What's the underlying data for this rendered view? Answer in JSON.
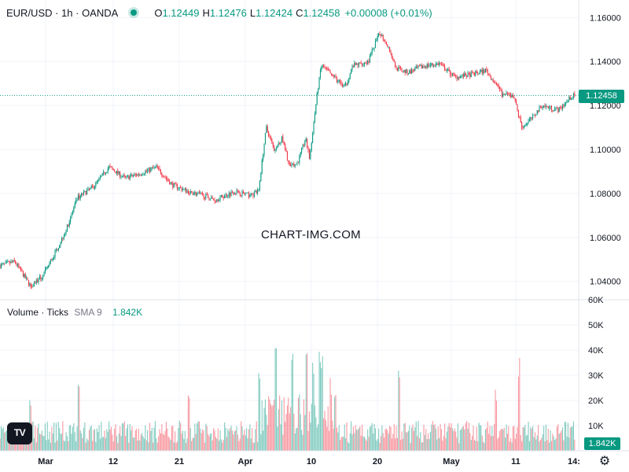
{
  "legend": {
    "symbol": "EUR/USD · 1h · OANDA",
    "open_label": "O",
    "open": "1.12449",
    "high_label": "H",
    "high": "1.12476",
    "low_label": "L",
    "low": "1.12424",
    "close_label": "C",
    "close": "1.12458",
    "change": "+0.00008 (+0.01%)"
  },
  "volume_legend": {
    "name": "Volume · Ticks",
    "sma": "SMA 9",
    "value": "1.842K"
  },
  "watermark": "CHART-IMG.COM",
  "last_price_label": "1.12458",
  "last_volume_label": "1.842K",
  "colors": {
    "up": "#089981",
    "down": "#f23645",
    "grid": "#f0f3fa",
    "text": "#131722"
  },
  "icons": {
    "logo": "tradingview-logo-icon",
    "settings": "gear-icon"
  },
  "chart_data": {
    "type": "candlestick",
    "price_axis": {
      "ticks": [
        "1.16000",
        "1.14000",
        "1.12000",
        "1.10000",
        "1.08000",
        "1.06000",
        "1.04000"
      ],
      "range": [
        1.032,
        1.168
      ]
    },
    "volume_axis": {
      "ticks": [
        "60K",
        "50K",
        "40K",
        "30K",
        "20K",
        "10K"
      ],
      "range": [
        0,
        60000
      ]
    },
    "x_ticks": [
      "Mar",
      "12",
      "21",
      "Apr",
      "10",
      "20",
      "May",
      "11",
      "14:"
    ],
    "last_price": 1.12458,
    "price_path": [
      [
        0,
        1.047
      ],
      [
        20,
        1.049
      ],
      [
        40,
        1.038
      ],
      [
        55,
        1.042
      ],
      [
        70,
        1.052
      ],
      [
        85,
        1.063
      ],
      [
        100,
        1.078
      ],
      [
        120,
        1.083
      ],
      [
        140,
        1.092
      ],
      [
        160,
        1.087
      ],
      [
        180,
        1.089
      ],
      [
        200,
        1.092
      ],
      [
        220,
        1.084
      ],
      [
        240,
        1.081
      ],
      [
        260,
        1.079
      ],
      [
        275,
        1.077
      ],
      [
        300,
        1.081
      ],
      [
        320,
        1.079
      ],
      [
        330,
        1.081
      ],
      [
        340,
        1.11
      ],
      [
        350,
        1.1
      ],
      [
        360,
        1.105
      ],
      [
        370,
        1.092
      ],
      [
        380,
        1.094
      ],
      [
        390,
        1.105
      ],
      [
        395,
        1.096
      ],
      [
        405,
        1.126
      ],
      [
        410,
        1.138
      ],
      [
        420,
        1.135
      ],
      [
        440,
        1.128
      ],
      [
        450,
        1.138
      ],
      [
        470,
        1.14
      ],
      [
        478,
        1.148
      ],
      [
        485,
        1.153
      ],
      [
        495,
        1.147
      ],
      [
        505,
        1.137
      ],
      [
        520,
        1.135
      ],
      [
        540,
        1.138
      ],
      [
        560,
        1.139
      ],
      [
        580,
        1.133
      ],
      [
        600,
        1.134
      ],
      [
        620,
        1.136
      ],
      [
        640,
        1.125
      ],
      [
        655,
        1.124
      ],
      [
        665,
        1.11
      ],
      [
        680,
        1.115
      ],
      [
        690,
        1.12
      ],
      [
        700,
        1.119
      ],
      [
        712,
        1.118
      ],
      [
        720,
        1.121
      ],
      [
        728,
        1.124
      ],
      [
        732,
        1.1246
      ]
    ],
    "volume_spikes": [
      [
        38,
        18000
      ],
      [
        100,
        24000
      ],
      [
        240,
        20000
      ],
      [
        330,
        30000
      ],
      [
        350,
        38000
      ],
      [
        372,
        34000
      ],
      [
        390,
        40000
      ],
      [
        398,
        36000
      ],
      [
        406,
        38000
      ],
      [
        410,
        34000
      ],
      [
        420,
        26000
      ],
      [
        508,
        28000
      ],
      [
        630,
        22000
      ],
      [
        660,
        33000
      ]
    ]
  }
}
